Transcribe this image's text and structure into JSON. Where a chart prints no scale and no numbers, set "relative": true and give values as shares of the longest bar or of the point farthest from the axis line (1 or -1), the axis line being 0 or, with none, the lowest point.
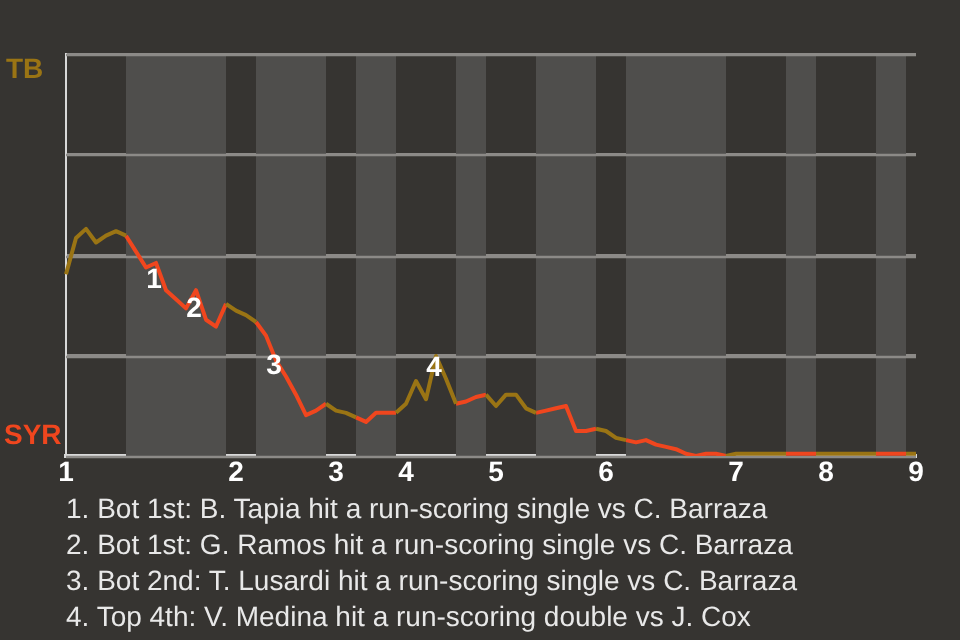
{
  "chart_data": {
    "type": "line",
    "relative": true,
    "categories": [
      "1",
      null,
      null,
      null,
      null,
      null,
      null,
      null,
      null,
      null,
      null,
      null,
      null,
      null,
      null,
      null,
      null,
      "2",
      null,
      null,
      null,
      null,
      null,
      null,
      null,
      null,
      null,
      "3",
      null,
      null,
      null,
      null,
      null,
      null,
      "4",
      null,
      null,
      null,
      null,
      null,
      null,
      null,
      null,
      "5",
      null,
      null,
      null,
      null,
      null,
      null,
      null,
      null,
      null,
      null,
      "6",
      null,
      null,
      null,
      null,
      null,
      null,
      null,
      null,
      null,
      null,
      null,
      null,
      "7",
      null,
      null,
      null,
      null,
      null,
      null,
      null,
      null,
      "8",
      null,
      null,
      null,
      null,
      null,
      null,
      null,
      null,
      "9"
    ],
    "grid": "y",
    "series": [
      {
        "color": "#9a7414",
        "values": [
          0.8,
          0.96,
          1,
          0.94,
          0.97,
          0.99,
          0.97,
          null,
          null,
          null,
          null,
          null,
          null,
          null,
          null,
          null,
          0.67,
          0.64,
          0.62,
          0.59,
          null,
          null,
          null,
          null,
          null,
          null,
          0.23,
          0.2,
          0.19,
          0.17,
          null,
          null,
          null,
          0.19,
          0.23,
          0.33,
          0.25,
          0.44,
          0.34,
          0.23,
          null,
          null,
          0.27,
          0.22,
          0.27,
          0.27,
          0.21,
          0.19,
          null,
          null,
          null,
          null,
          null,
          0.12,
          0.11,
          0.08,
          0.07,
          null,
          null,
          null,
          null,
          null,
          null,
          null,
          null,
          null,
          0,
          0.01,
          0.01,
          0.01,
          0.01,
          0.01,
          0.01,
          null,
          null,
          0.01,
          0.01,
          0.01,
          0.01,
          0.01,
          0.01,
          0.01,
          null,
          null,
          0.01,
          0.01
        ]
      },
      {
        "color": "#f0461e",
        "values": [
          null,
          null,
          null,
          null,
          null,
          null,
          0.97,
          0.9,
          0.83,
          0.85,
          0.73,
          0.69,
          0.65,
          0.73,
          0.6,
          0.57,
          0.67,
          null,
          null,
          0.59,
          0.53,
          0.42,
          0.35,
          0.27,
          0.18,
          0.2,
          0.23,
          null,
          null,
          0.17,
          0.15,
          0.19,
          0.19,
          0.19,
          null,
          null,
          null,
          null,
          null,
          0.23,
          0.24,
          0.26,
          0.27,
          null,
          null,
          null,
          null,
          0.19,
          0.2,
          0.21,
          0.22,
          0.11,
          0.11,
          0.12,
          null,
          null,
          0.07,
          0.06,
          0.07,
          0.05,
          0.04,
          0.03,
          0.01,
          0,
          0.01,
          0.01,
          0,
          null,
          null,
          null,
          null,
          null,
          0.01,
          0.01,
          0.01,
          0.01,
          null,
          null,
          null,
          null,
          null,
          0.01,
          0.01,
          0.01,
          0.01,
          null
        ]
      }
    ],
    "annotations": [
      "TB",
      "SYR",
      {
        "text": "1",
        "y": 0.73
      },
      {
        "text": "2",
        "y": 0.6
      },
      {
        "text": "3",
        "y": 0.35
      },
      {
        "text": "4",
        "y": 0.34
      },
      "1. Bot 1st: B. Tapia hit a run-scoring single vs C. Barraza",
      "2. Bot 1st: G. Ramos hit a run-scoring single vs C. Barraza",
      "3. Bot 2nd: T. Lusardi hit a run-scoring single vs C. Barraza",
      "4. Top 4th: V. Medina hit a run-scoring double vs J. Cox"
    ]
  }
}
